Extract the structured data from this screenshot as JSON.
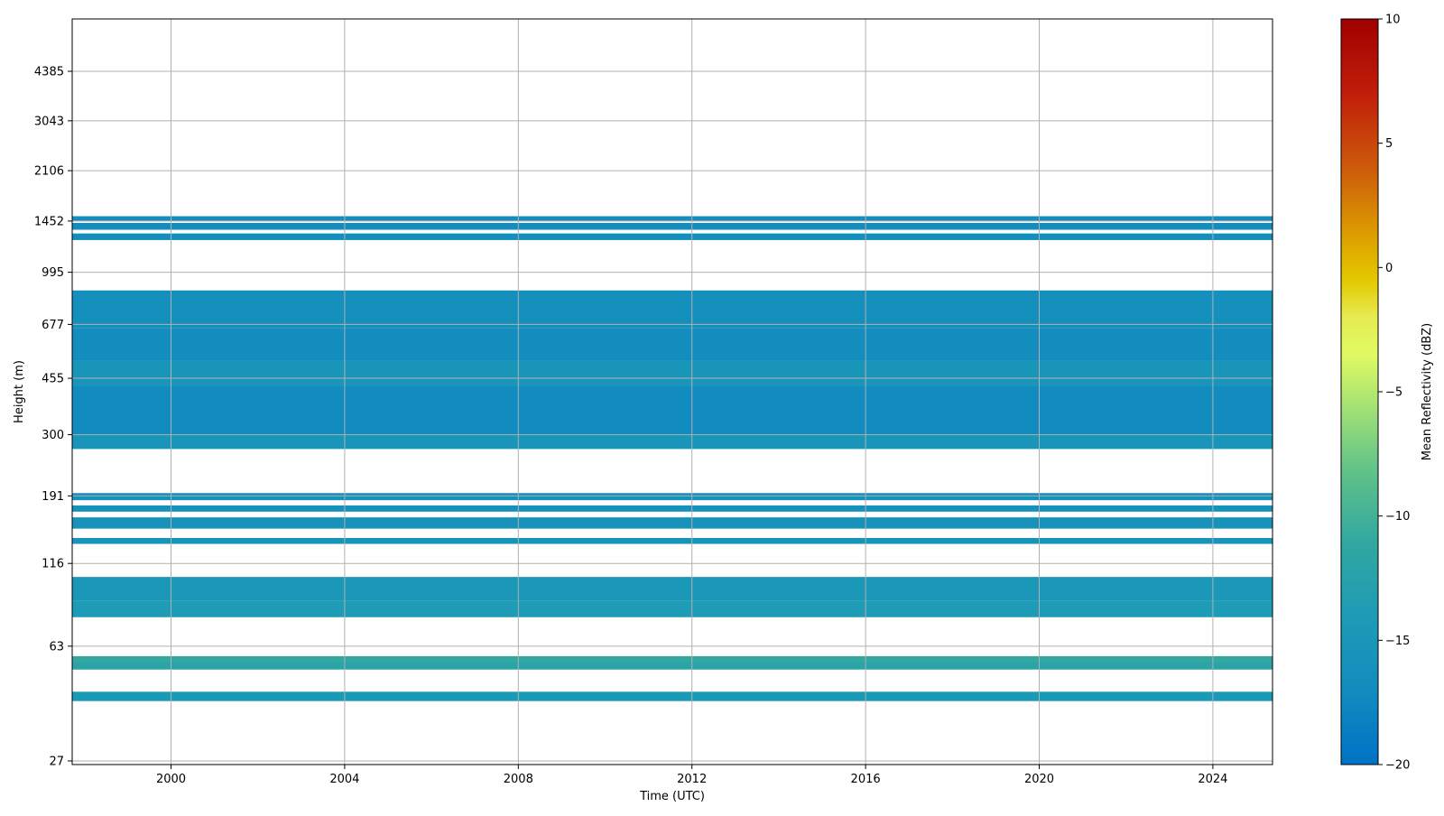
{
  "chart_data": {
    "type": "heatmap",
    "title": "",
    "xlabel": "Time (UTC)",
    "ylabel": "Height (m)",
    "grid": true,
    "x_ticks": [
      "2000",
      "2004",
      "2008",
      "2012",
      "2016",
      "2020",
      "2024"
    ],
    "y_ticks": [
      "27",
      "63",
      "116",
      "191",
      "300",
      "455",
      "677",
      "995",
      "1452",
      "2106",
      "3043",
      "4385"
    ],
    "colorbar": {
      "label": "Mean Reflectivity (dBZ)",
      "min": -20,
      "max": 10,
      "ticks": [
        "−20",
        "−15",
        "−10",
        "−5",
        "0",
        "5",
        "10"
      ],
      "tick_values": [
        -20,
        -15,
        -10,
        -5,
        0,
        5,
        10
      ],
      "colormap": "HomeyerRainbow-like (blue → teal → green → yellow → orange → red)"
    },
    "layers": [
      {
        "bottom": 1455,
        "top": 1505,
        "value": -16.8
      },
      {
        "bottom": 1362,
        "top": 1432,
        "value": -16.8
      },
      {
        "bottom": 1262,
        "top": 1325,
        "value": -16.6
      },
      {
        "bottom": 660,
        "top": 870,
        "value": -16.3
      },
      {
        "bottom": 520,
        "top": 660,
        "value": -16.9
      },
      {
        "bottom": 430,
        "top": 520,
        "value": -15.3
      },
      {
        "bottom": 300,
        "top": 430,
        "value": -17.0
      },
      {
        "bottom": 270,
        "top": 300,
        "value": -15.2
      },
      {
        "bottom": 185,
        "top": 195,
        "value": -16.0
      },
      {
        "bottom": 170,
        "top": 178,
        "value": -16.0
      },
      {
        "bottom": 150,
        "top": 163,
        "value": -15.7
      },
      {
        "bottom": 134,
        "top": 140,
        "value": -15.5
      },
      {
        "bottom": 88,
        "top": 105,
        "value": -14.8
      },
      {
        "bottom": 78,
        "top": 88,
        "value": -14.0
      },
      {
        "bottom": 56,
        "top": 58.5,
        "value": -11.0
      },
      {
        "bottom": 53,
        "top": 56,
        "value": -11.9
      },
      {
        "bottom": 42,
        "top": 45,
        "value": -14.5
      }
    ]
  }
}
